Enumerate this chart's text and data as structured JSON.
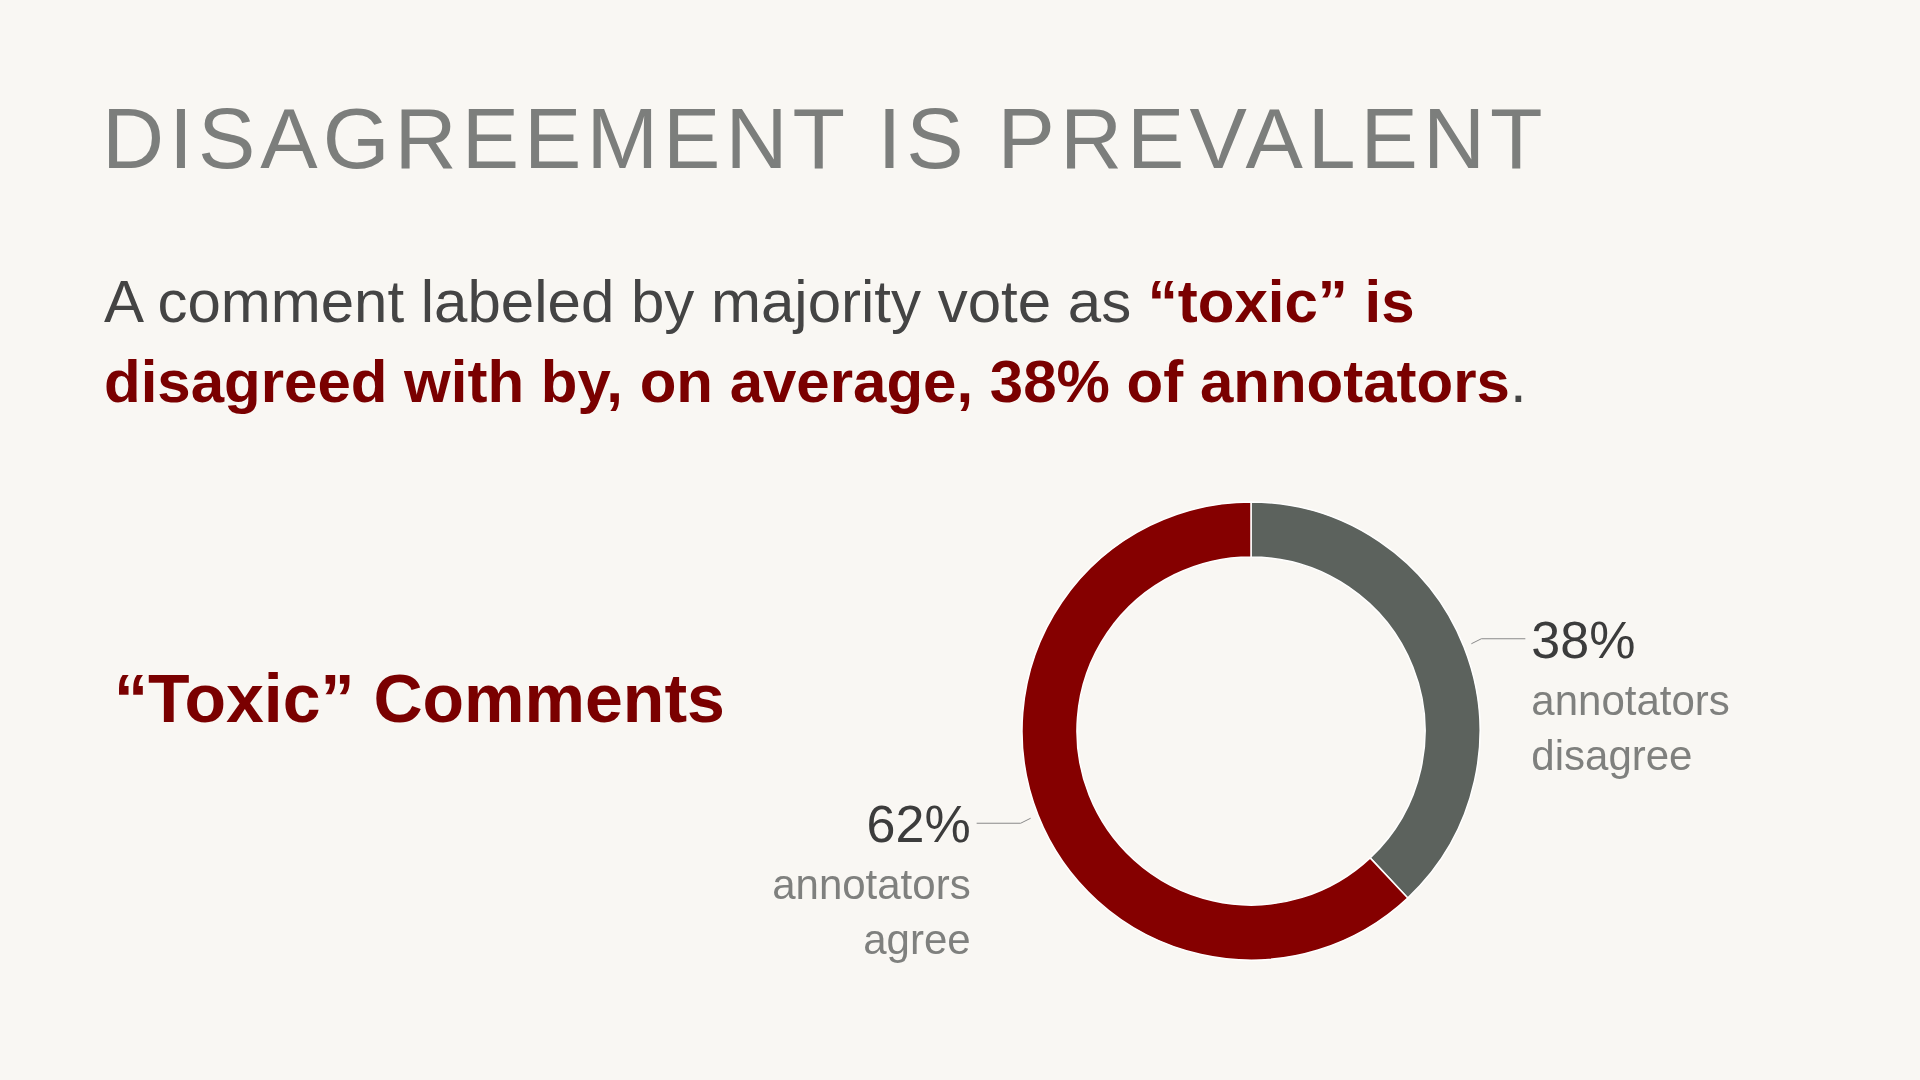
{
  "chart_data": {
    "type": "donut",
    "title": "DISAGREEMENT IS PREVALENT",
    "subtitle": "A comment labeled by majority vote as “toxic” is disagreed with by, on average, 38% of annotators.",
    "annotations": [
      "“Toxic” Comments"
    ],
    "categories": [
      "annotators disagree",
      "annotators agree"
    ],
    "values": [
      38,
      62
    ],
    "colors": [
      "#5c625d",
      "#850000"
    ],
    "value_labels": [
      "38%",
      "62%"
    ]
  }
}
